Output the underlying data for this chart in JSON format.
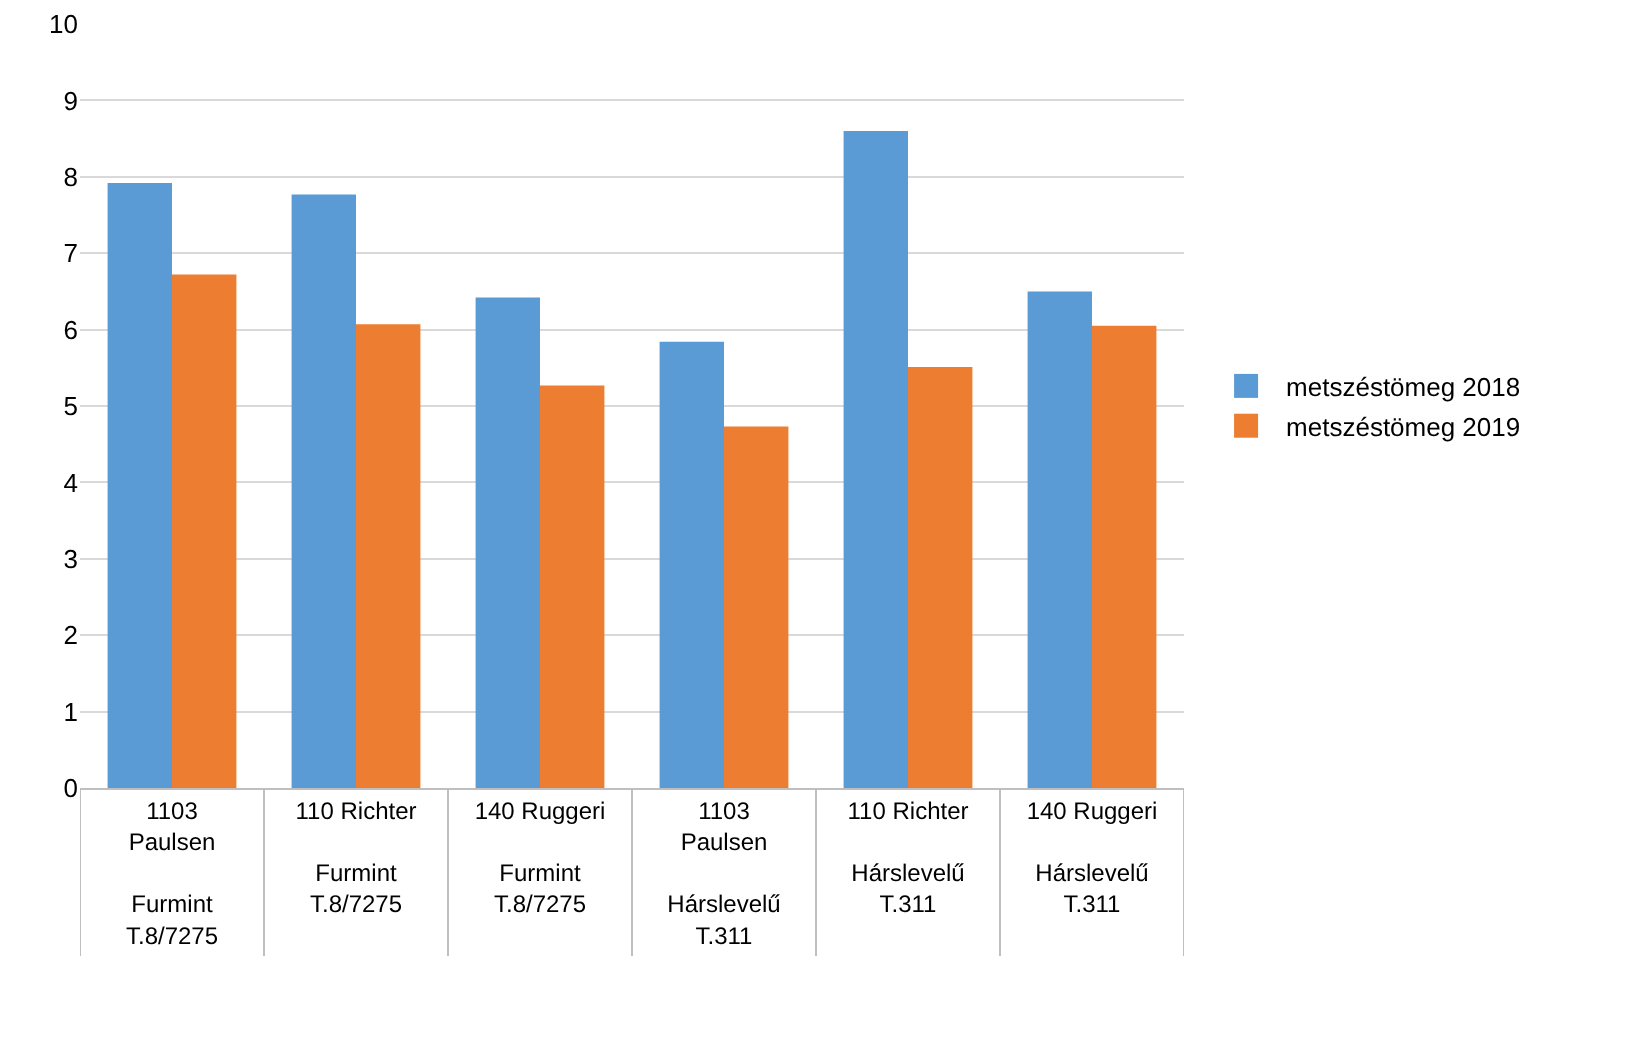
{
  "chart_data": {
    "type": "bar",
    "categories": [
      "1103 Paulsen\nFurmint T.8/7275",
      "110 Richter\nFurmint T.8/7275",
      "140 Ruggeri\nFurmint T.8/7275",
      "1103 Paulsen\nHárslevelű T.311",
      "110 Richter\nHárslevelű T.311",
      "140 Ruggeri\nHárslevelű T.311"
    ],
    "series": [
      {
        "name": "metszéstömeg 2018",
        "color": "#5b9bd5",
        "values": [
          7.92,
          7.77,
          6.42,
          5.84,
          8.6,
          6.5
        ]
      },
      {
        "name": "metszéstömeg 2019",
        "color": "#ed7d31",
        "values": [
          6.72,
          6.07,
          5.27,
          4.73,
          5.51,
          6.05
        ]
      }
    ],
    "ylim": [
      0,
      10
    ],
    "yticks": [
      0,
      1,
      2,
      3,
      4,
      5,
      6,
      7,
      8,
      9,
      10
    ],
    "grid": "y",
    "legend": "right"
  }
}
